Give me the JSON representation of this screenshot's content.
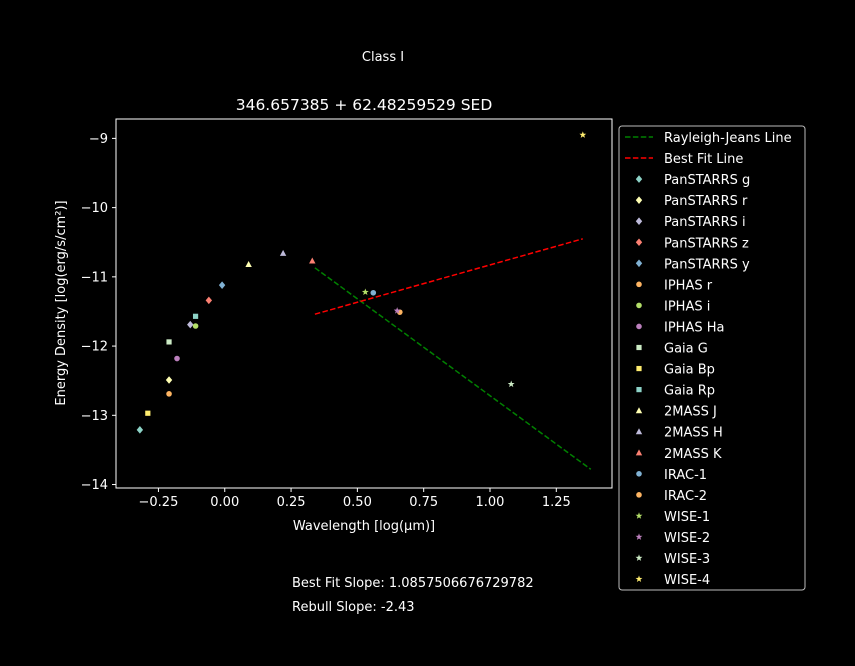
{
  "suptitle": "Class I",
  "footer": {
    "best_fit": "Best Fit Slope: 1.0857506676729782",
    "rebull": "Rebull Slope: -2.43"
  },
  "chart_data": {
    "type": "scatter",
    "title": "346.657385 + 62.48259529 SED",
    "xlabel": "Wavelength [log(μm)]",
    "ylabel": "Energy Density [log(erg/s/cm²)]",
    "xlim": [
      -0.41,
      1.46
    ],
    "ylim": [
      -14.05,
      -8.72
    ],
    "xticks": [
      -0.25,
      0.0,
      0.25,
      0.5,
      0.75,
      1.0,
      1.25
    ],
    "xtick_labels": [
      "−0.25",
      "0.00",
      "0.25",
      "0.50",
      "0.75",
      "1.00",
      "1.25"
    ],
    "yticks": [
      -14,
      -13,
      -12,
      -11,
      -10,
      -9
    ],
    "ytick_labels": [
      "−14",
      "−13",
      "−12",
      "−11",
      "−10",
      "−9"
    ],
    "grid": false,
    "legend_position": "outside-right",
    "lines": [
      {
        "name": "Rayleigh-Jeans Line",
        "color": "#008000",
        "dash": true,
        "x": [
          0.34,
          1.38
        ],
        "y": [
          -10.87,
          -13.78
        ]
      },
      {
        "name": "Best Fit Line",
        "color": "#ff0000",
        "dash": true,
        "x": [
          0.34,
          1.35
        ],
        "y": [
          -11.54,
          -10.45
        ]
      }
    ],
    "series": [
      {
        "name": "PanSTARRS g",
        "marker": "diamond",
        "color": "#8dd3c7",
        "x": [
          -0.32
        ],
        "y": [
          -13.21
        ]
      },
      {
        "name": "PanSTARRS r",
        "marker": "diamond",
        "color": "#ffffb3",
        "x": [
          -0.21
        ],
        "y": [
          -12.49
        ]
      },
      {
        "name": "PanSTARRS i",
        "marker": "diamond",
        "color": "#bebada",
        "x": [
          -0.13
        ],
        "y": [
          -11.69
        ]
      },
      {
        "name": "PanSTARRS z",
        "marker": "diamond",
        "color": "#fb8072",
        "x": [
          -0.06
        ],
        "y": [
          -11.34
        ]
      },
      {
        "name": "PanSTARRS y",
        "marker": "diamond",
        "color": "#80b1d3",
        "x": [
          -0.01
        ],
        "y": [
          -11.12
        ]
      },
      {
        "name": "IPHAS r",
        "marker": "circle",
        "color": "#fdb462",
        "x": [
          -0.21
        ],
        "y": [
          -12.69
        ]
      },
      {
        "name": "IPHAS i",
        "marker": "circle",
        "color": "#b3de69",
        "x": [
          -0.11
        ],
        "y": [
          -11.71
        ]
      },
      {
        "name": "IPHAS Ha",
        "marker": "circle",
        "color": "#bc80bd",
        "x": [
          -0.18
        ],
        "y": [
          -12.18
        ]
      },
      {
        "name": "Gaia G",
        "marker": "square",
        "color": "#ccebc5",
        "x": [
          -0.21
        ],
        "y": [
          -11.94
        ]
      },
      {
        "name": "Gaia Bp",
        "marker": "square",
        "color": "#ffed6f",
        "x": [
          -0.29
        ],
        "y": [
          -12.97
        ]
      },
      {
        "name": "Gaia Rp",
        "marker": "square",
        "color": "#8dd3c7",
        "x": [
          -0.11
        ],
        "y": [
          -11.57
        ]
      },
      {
        "name": "2MASS J",
        "marker": "triangle",
        "color": "#ffffb3",
        "x": [
          0.09
        ],
        "y": [
          -10.82
        ]
      },
      {
        "name": "2MASS H",
        "marker": "triangle",
        "color": "#bebada",
        "x": [
          0.22
        ],
        "y": [
          -10.66
        ]
      },
      {
        "name": "2MASS K",
        "marker": "triangle",
        "color": "#fb8072",
        "x": [
          0.33
        ],
        "y": [
          -10.77
        ]
      },
      {
        "name": "IRAC-1",
        "marker": "circle",
        "color": "#80b1d3",
        "x": [
          0.56
        ],
        "y": [
          -11.23
        ]
      },
      {
        "name": "IRAC-2",
        "marker": "circle",
        "color": "#fdb462",
        "x": [
          0.66
        ],
        "y": [
          -11.51
        ]
      },
      {
        "name": "WISE-1",
        "marker": "star",
        "color": "#b3de69",
        "x": [
          0.53
        ],
        "y": [
          -11.22
        ]
      },
      {
        "name": "WISE-2",
        "marker": "star",
        "color": "#bc80bd",
        "x": [
          0.65
        ],
        "y": [
          -11.49
        ]
      },
      {
        "name": "WISE-3",
        "marker": "star",
        "color": "#ccebc5",
        "x": [
          1.08
        ],
        "y": [
          -12.55
        ]
      },
      {
        "name": "WISE-4",
        "marker": "star",
        "color": "#ffed6f",
        "x": [
          1.35
        ],
        "y": [
          -8.95
        ]
      }
    ]
  }
}
